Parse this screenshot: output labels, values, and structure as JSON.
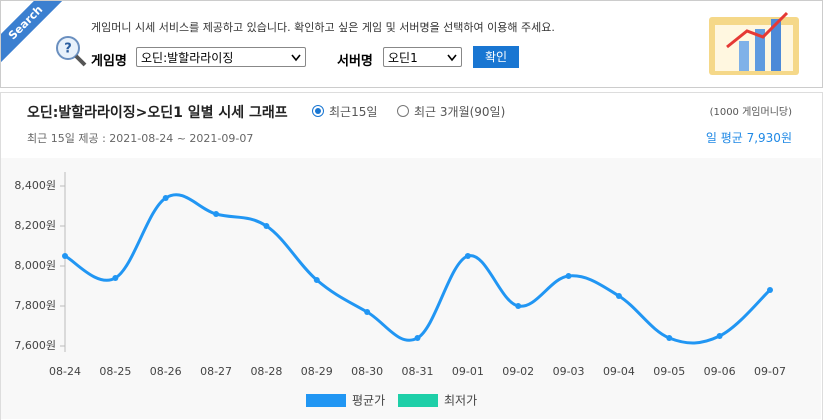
{
  "search": {
    "badge": "Search",
    "notice": "게임머니 시세 서비스를 제공하고 있습니다. 확인하고 싶은 게임 및 서버명을 선택하여 이용해 주세요.",
    "game_label": "게임명",
    "game_value": "오딘:발할라라이징",
    "server_label": "서버명",
    "server_value": "오딘1",
    "button": "확인"
  },
  "panel": {
    "heading": "오딘:발할라라이징>오딘1 일별 시세 그래프",
    "radio_options": [
      "최근15일",
      "최근 3개월(90일)"
    ],
    "selected": 0,
    "unit_note": "(1000 게임머니당)",
    "period": "최근 15일 제공 : 2021-08-24 ~ 2021-09-07",
    "average": "일 평균 7,930원"
  },
  "chart_data": {
    "type": "line",
    "categories": [
      "08-24",
      "08-25",
      "08-26",
      "08-27",
      "08-28",
      "08-29",
      "08-30",
      "08-31",
      "09-01",
      "09-02",
      "09-03",
      "09-04",
      "09-05",
      "09-06",
      "09-07"
    ],
    "series": [
      {
        "name": "평균가",
        "color": "#2196f3",
        "values": [
          8050,
          7940,
          8340,
          8260,
          8200,
          7930,
          7770,
          7640,
          8050,
          7800,
          7950,
          7850,
          7640,
          7650,
          7880
        ]
      },
      {
        "name": "최저가",
        "color": "#1ecfa8"
      }
    ],
    "ylim": [
      7600,
      8400
    ],
    "yticks": [
      {
        "value": 7600,
        "label": "7,600원"
      },
      {
        "value": 7800,
        "label": "7,800원"
      },
      {
        "value": 8000,
        "label": "8,000원"
      },
      {
        "value": 8200,
        "label": "8,200원"
      },
      {
        "value": 8400,
        "label": "8,400원"
      }
    ],
    "grid": false
  }
}
